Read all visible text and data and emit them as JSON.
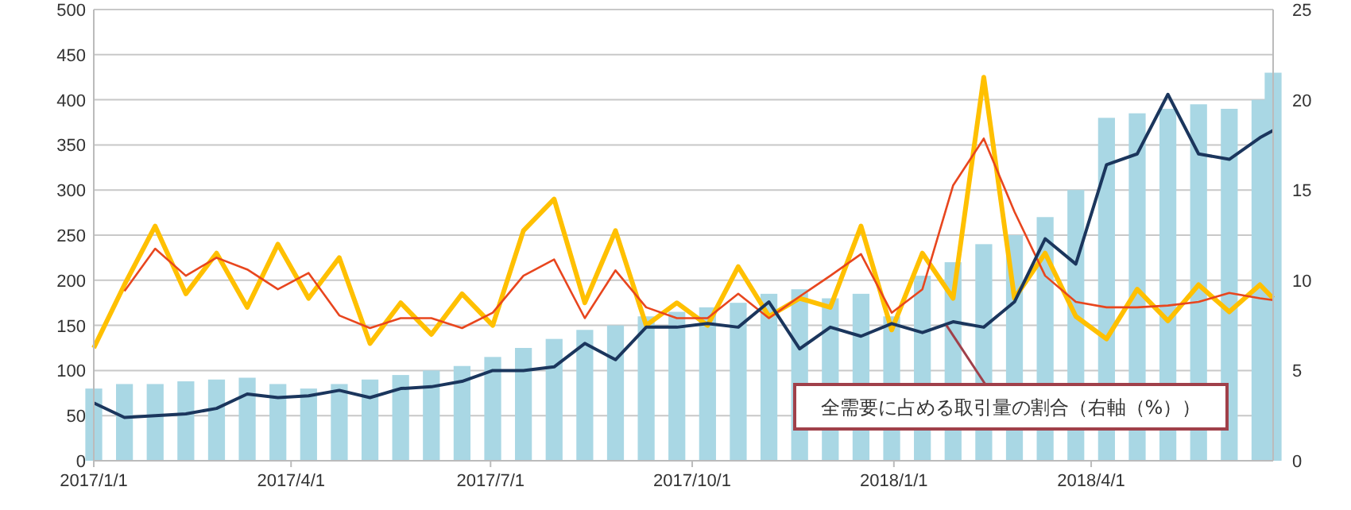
{
  "chart_data": {
    "type": "line",
    "x": [
      "2017-01-01",
      "2017-01-15",
      "2017-01-29",
      "2017-02-12",
      "2017-02-26",
      "2017-03-12",
      "2017-03-26",
      "2017-04-09",
      "2017-04-23",
      "2017-05-07",
      "2017-05-21",
      "2017-06-04",
      "2017-06-18",
      "2017-07-02",
      "2017-07-16",
      "2017-07-30",
      "2017-08-13",
      "2017-08-27",
      "2017-09-10",
      "2017-09-24",
      "2017-10-08",
      "2017-10-22",
      "2017-11-05",
      "2017-11-19",
      "2017-12-03",
      "2017-12-17",
      "2017-12-31",
      "2018-01-14",
      "2018-01-28",
      "2018-02-11",
      "2018-02-25",
      "2018-03-11",
      "2018-03-25",
      "2018-04-08",
      "2018-04-22",
      "2018-05-06",
      "2018-05-20",
      "2018-06-03",
      "2018-06-17",
      "2018-06-23"
    ],
    "series": [
      {
        "type": "bar",
        "color": "#a9d7e4",
        "values": [
          80,
          85,
          85,
          88,
          90,
          92,
          85,
          80,
          85,
          90,
          95,
          100,
          105,
          115,
          125,
          135,
          145,
          150,
          160,
          165,
          170,
          175,
          185,
          190,
          180,
          185,
          160,
          205,
          220,
          240,
          250,
          270,
          300,
          380,
          385,
          390,
          395,
          390,
          400,
          430
        ]
      },
      {
        "color": "#ffc000",
        "values": [
          125,
          195,
          260,
          185,
          230,
          170,
          240,
          180,
          225,
          130,
          175,
          140,
          185,
          150,
          255,
          290,
          175,
          255,
          150,
          175,
          150,
          215,
          160,
          180,
          170,
          260,
          145,
          230,
          180,
          425,
          180,
          230,
          160,
          135,
          190,
          155,
          195,
          165,
          195,
          180
        ]
      },
      {
        "color": "#e8461e",
        "values": [
          null,
          188,
          235,
          205,
          225,
          212,
          190,
          208,
          161,
          147,
          158,
          158,
          147,
          164,
          205,
          223,
          158,
          211,
          170,
          158,
          158,
          185,
          158,
          182,
          205,
          229,
          164,
          190,
          305,
          357,
          276,
          205,
          176,
          170,
          170,
          172,
          176,
          186,
          180,
          178
        ]
      },
      {
        "color": "#1b365d",
        "axis": "y2",
        "values": [
          3.2,
          2.4,
          2.5,
          2.6,
          2.9,
          3.7,
          3.5,
          3.6,
          3.9,
          3.5,
          4.0,
          4.1,
          4.4,
          5.0,
          5.0,
          5.2,
          6.5,
          5.6,
          7.4,
          7.4,
          7.6,
          7.4,
          8.8,
          6.2,
          7.4,
          6.9,
          7.6,
          7.1,
          7.7,
          7.4,
          8.8,
          12.3,
          10.9,
          16.4,
          17.0,
          20.3,
          17.0,
          16.7,
          17.9,
          18.3
        ]
      }
    ],
    "xlim": [
      "2017-01-01",
      "2018-06-23"
    ],
    "xticks": [
      {
        "value": "2017-01-01",
        "label": "2017/1/1"
      },
      {
        "value": "2017-04-01",
        "label": "2017/4/1"
      },
      {
        "value": "2017-07-01",
        "label": "2017/7/1"
      },
      {
        "value": "2017-10-01",
        "label": "2017/10/1"
      },
      {
        "value": "2018-01-01",
        "label": "2018/1/1"
      },
      {
        "value": "2018-04-01",
        "label": "2018/4/1"
      }
    ],
    "ylim": [
      0,
      500
    ],
    "yticks": [
      0,
      50,
      100,
      150,
      200,
      250,
      300,
      350,
      400,
      450,
      500
    ],
    "y2lim": [
      0,
      25
    ],
    "y2ticks": [
      0,
      5,
      10,
      15,
      20,
      25
    ],
    "grid": "y",
    "annotations": [
      {
        "text": "全需要に占める取引量の割合（右軸（%））",
        "x": "2018-01-25",
        "y": 150
      }
    ]
  }
}
